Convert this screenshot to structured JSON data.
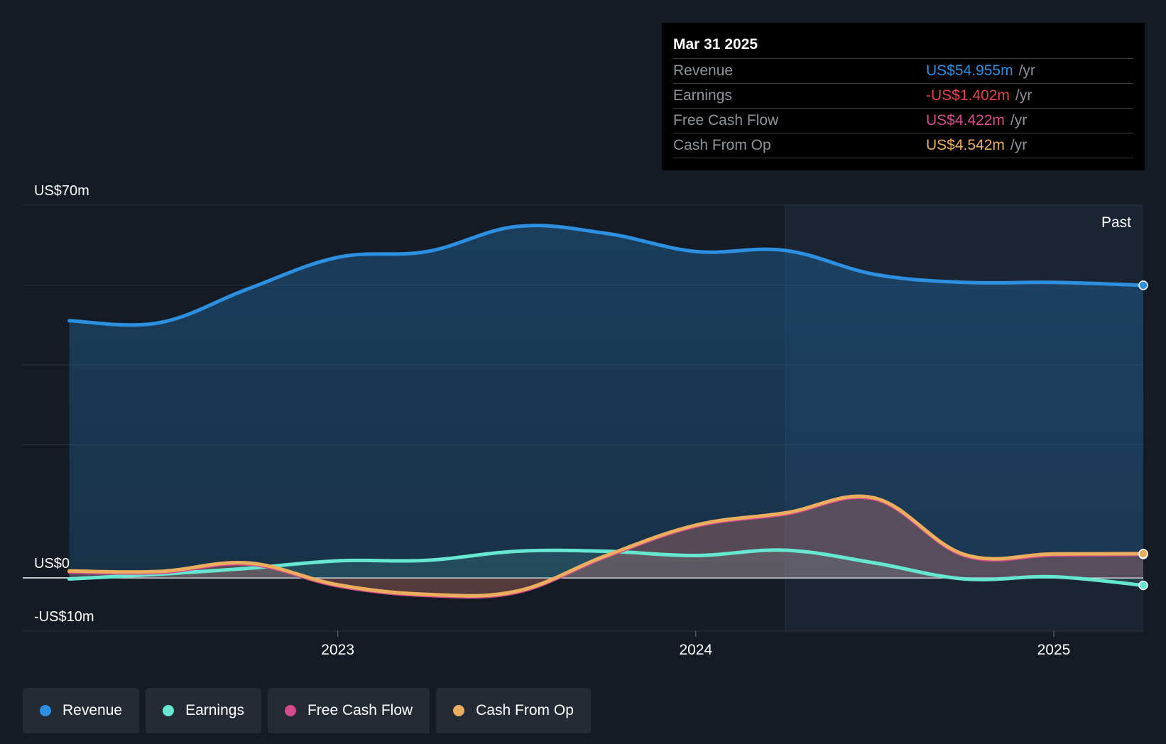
{
  "tooltip": {
    "date": "Mar 31 2025",
    "rows": [
      {
        "label": "Revenue",
        "value": "US$54.955m",
        "unit": "/yr",
        "color": "#2d8fe0"
      },
      {
        "label": "Earnings",
        "value": "-US$1.402m",
        "unit": "/yr",
        "color": "#e8414f"
      },
      {
        "label": "Free Cash Flow",
        "value": "US$4.422m",
        "unit": "/yr",
        "color": "#d54b8d"
      },
      {
        "label": "Cash From Op",
        "value": "US$4.542m",
        "unit": "/yr",
        "color": "#eaae5e"
      }
    ]
  },
  "past_label": "Past",
  "legend": [
    {
      "label": "Revenue",
      "color": "#2d8fe0"
    },
    {
      "label": "Earnings",
      "color": "#67e6d2"
    },
    {
      "label": "Free Cash Flow",
      "color": "#d54b8d"
    },
    {
      "label": "Cash From Op",
      "color": "#eaae5e"
    }
  ],
  "chart_data": {
    "type": "area",
    "ylim": [
      -10,
      70
    ],
    "y_tick_labels": [
      {
        "value": 70,
        "label": "US$70m"
      },
      {
        "value": 0,
        "label": "US$0"
      },
      {
        "value": -10,
        "label": "-US$10m"
      }
    ],
    "x_ticks": [
      {
        "value": 2023.0,
        "label": "2023"
      },
      {
        "value": 2024.0,
        "label": "2024"
      },
      {
        "value": 2025.0,
        "label": "2025"
      }
    ],
    "xlim": [
      2022.12,
      2025.25
    ],
    "past_start": 2024.25,
    "series": [
      {
        "name": "Revenue",
        "color": "#2d8fe0",
        "x": [
          2022.25,
          2022.5,
          2022.75,
          2023.0,
          2023.25,
          2023.5,
          2023.75,
          2024.0,
          2024.25,
          2024.5,
          2024.75,
          2025.0,
          2025.25
        ],
        "y": [
          48.3,
          47.9,
          54.3,
          60.2,
          61.3,
          66.0,
          64.7,
          61.3,
          61.5,
          57.0,
          55.5,
          55.5,
          54.955
        ]
      },
      {
        "name": "Earnings",
        "color": "#67e6d2",
        "x": [
          2022.25,
          2022.5,
          2022.75,
          2023.0,
          2023.25,
          2023.5,
          2023.75,
          2024.0,
          2024.25,
          2024.5,
          2024.75,
          2025.0,
          2025.25
        ],
        "y": [
          -0.2,
          0.7,
          1.8,
          3.2,
          3.3,
          5.0,
          5.0,
          4.2,
          5.2,
          2.8,
          -0.2,
          0.2,
          -1.402
        ]
      },
      {
        "name": "Free Cash Flow",
        "color": "#d54b8d",
        "x": [
          2022.25,
          2022.5,
          2022.75,
          2023.0,
          2023.25,
          2023.5,
          2023.75,
          2024.0,
          2024.25,
          2024.5,
          2024.75,
          2025.0,
          2025.25
        ],
        "y": [
          1.1,
          1.0,
          2.6,
          -1.5,
          -3.3,
          -2.7,
          4.0,
          9.7,
          12.0,
          14.8,
          4.2,
          4.3,
          4.422
        ]
      },
      {
        "name": "Cash From Op",
        "color": "#eaae5e",
        "x": [
          2022.25,
          2022.5,
          2022.75,
          2023.0,
          2023.25,
          2023.5,
          2023.75,
          2024.0,
          2024.25,
          2024.5,
          2024.75,
          2025.0,
          2025.25
        ],
        "y": [
          1.3,
          1.2,
          2.8,
          -1.3,
          -3.1,
          -2.5,
          4.2,
          9.9,
          12.2,
          15.0,
          4.4,
          4.5,
          4.542
        ]
      }
    ]
  }
}
